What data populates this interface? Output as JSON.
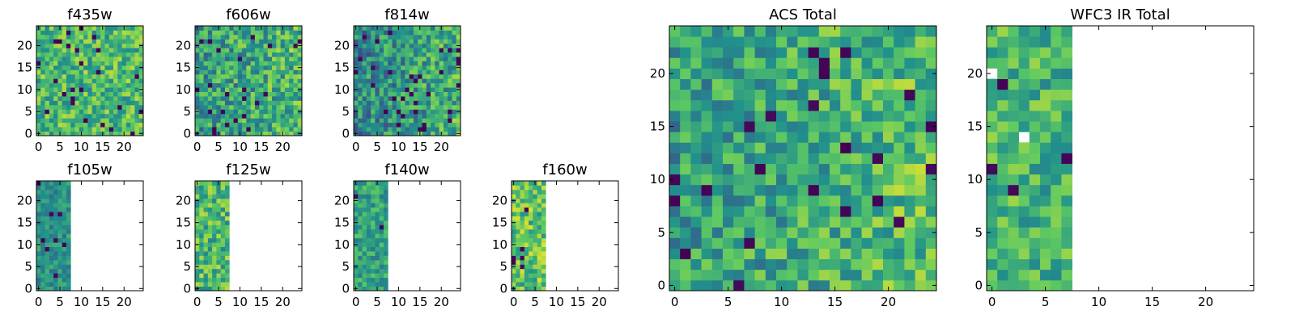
{
  "figure": {
    "background": "#ffffff",
    "colormap": "viridis",
    "colormap_stops": [
      "#440154",
      "#3b528b",
      "#21918c",
      "#5ec962",
      "#fde725"
    ]
  },
  "chart_data": [
    {
      "type": "heatmap",
      "title": "f435w",
      "grid": [
        25,
        25
      ],
      "xlim": [
        -0.5,
        24.5
      ],
      "ylim": [
        -0.5,
        24.5
      ],
      "xticks": [
        "0",
        "5",
        "10",
        "15",
        "20"
      ],
      "yticks": [
        "0",
        "5",
        "10",
        "15",
        "20"
      ],
      "coverage": {
        "max_x": 24,
        "max_y": 24,
        "notch": []
      },
      "color_range": [
        0.45,
        0.9
      ],
      "x_gradient": 0.0,
      "dark_fraction": 0.03,
      "seed": 11
    },
    {
      "type": "heatmap",
      "title": "f606w",
      "grid": [
        25,
        25
      ],
      "xlim": [
        -0.5,
        24.5
      ],
      "ylim": [
        -0.5,
        24.5
      ],
      "xticks": [
        "0",
        "5",
        "10",
        "15",
        "20"
      ],
      "yticks": [
        "0",
        "5",
        "10",
        "15",
        "20"
      ],
      "coverage": {
        "max_x": 24,
        "max_y": 24,
        "notch": []
      },
      "color_range": [
        0.35,
        0.85
      ],
      "x_gradient": 0.2,
      "dark_fraction": 0.03,
      "seed": 23
    },
    {
      "type": "heatmap",
      "title": "f814w",
      "grid": [
        25,
        25
      ],
      "xlim": [
        -0.5,
        24.5
      ],
      "ylim": [
        -0.5,
        24.5
      ],
      "xticks": [
        "0",
        "5",
        "10",
        "15",
        "20"
      ],
      "yticks": [
        "0",
        "5",
        "10",
        "15",
        "20"
      ],
      "coverage": {
        "max_x": 24,
        "max_y": 24,
        "notch": []
      },
      "color_range": [
        0.3,
        0.8
      ],
      "x_gradient": 0.3,
      "dark_fraction": 0.05,
      "seed": 37
    },
    {
      "type": "heatmap",
      "title": "f105w",
      "grid": [
        25,
        25
      ],
      "xlim": [
        -0.5,
        24.5
      ],
      "ylim": [
        -0.5,
        24.5
      ],
      "xticks": [
        "0",
        "5",
        "10",
        "15",
        "20"
      ],
      "yticks": [
        "0",
        "5",
        "10",
        "15",
        "20"
      ],
      "coverage": {
        "max_x": 7,
        "max_y": 24,
        "notch": []
      },
      "color_range": [
        0.35,
        0.65
      ],
      "x_gradient": 0.0,
      "dark_fraction": 0.04,
      "seed": 41
    },
    {
      "type": "heatmap",
      "title": "f125w",
      "grid": [
        25,
        25
      ],
      "xlim": [
        -0.5,
        24.5
      ],
      "ylim": [
        -0.5,
        24.5
      ],
      "xticks": [
        "0",
        "5",
        "10",
        "15",
        "20"
      ],
      "yticks": [
        "0",
        "5",
        "10",
        "15",
        "20"
      ],
      "coverage": {
        "max_x": 7,
        "max_y": 24,
        "notch": []
      },
      "color_range": [
        0.45,
        0.9
      ],
      "x_gradient": 0.0,
      "dark_fraction": 0.0,
      "seed": 53
    },
    {
      "type": "heatmap",
      "title": "f140w",
      "grid": [
        25,
        25
      ],
      "xlim": [
        -0.5,
        24.5
      ],
      "ylim": [
        -0.5,
        24.5
      ],
      "xticks": [
        "0",
        "5",
        "10",
        "15",
        "20"
      ],
      "yticks": [
        "0",
        "5",
        "10",
        "15",
        "20"
      ],
      "coverage": {
        "max_x": 7,
        "max_y": 24,
        "notch": []
      },
      "color_range": [
        0.4,
        0.75
      ],
      "x_gradient": 0.0,
      "dark_fraction": 0.03,
      "seed": 67
    },
    {
      "type": "heatmap",
      "title": "f160w",
      "grid": [
        25,
        25
      ],
      "xlim": [
        -0.5,
        24.5
      ],
      "ylim": [
        -0.5,
        24.5
      ],
      "xticks": [
        "0",
        "5",
        "10",
        "15",
        "20"
      ],
      "yticks": [
        "0",
        "5",
        "10",
        "15",
        "20"
      ],
      "coverage": {
        "max_x": 7,
        "max_y": 24,
        "notch": []
      },
      "color_range": [
        0.5,
        0.95
      ],
      "x_gradient": 0.0,
      "dark_fraction": 0.03,
      "seed": 79
    },
    {
      "type": "heatmap",
      "title": "ACS Total",
      "grid": [
        25,
        25
      ],
      "xlim": [
        -0.5,
        24.5
      ],
      "ylim": [
        -0.5,
        24.5
      ],
      "xticks": [
        "0",
        "5",
        "10",
        "15",
        "20"
      ],
      "yticks": [
        "0",
        "5",
        "10",
        "15",
        "20"
      ],
      "coverage": {
        "max_x": 24,
        "max_y": 24,
        "notch": []
      },
      "color_range": [
        0.4,
        0.85
      ],
      "x_gradient": 0.25,
      "dark_fraction": 0.04,
      "seed": 97
    },
    {
      "type": "heatmap",
      "title": "WFC3 IR Total",
      "grid": [
        25,
        25
      ],
      "xlim": [
        -0.5,
        24.5
      ],
      "ylim": [
        -0.5,
        24.5
      ],
      "xticks": [
        "0",
        "5",
        "10",
        "15",
        "20"
      ],
      "yticks": [
        "0",
        "5",
        "10",
        "15",
        "20"
      ],
      "coverage": {
        "max_x": 7,
        "max_y": 24,
        "notch": [
          [
            3,
            14
          ],
          [
            0,
            20
          ]
        ]
      },
      "color_range": [
        0.45,
        0.85
      ],
      "x_gradient": 0.0,
      "dark_fraction": 0.03,
      "seed": 113
    }
  ]
}
